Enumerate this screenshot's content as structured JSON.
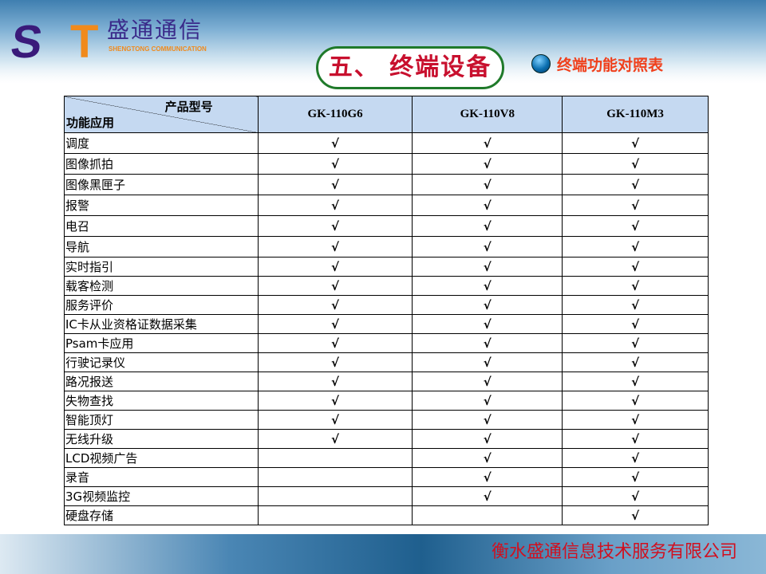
{
  "header": {
    "logo_cn": "盛通通信",
    "logo_en": "SHENGTONG COMMUNICATION",
    "logo_letters": "ST",
    "title": "五、 终端设备",
    "subtitle": "终端功能对照表"
  },
  "table": {
    "corner_top": "产品型号",
    "corner_bottom": "功能应用",
    "columns": [
      "GK-110G6",
      "GK-110V8",
      "GK-110M3"
    ],
    "check": "√",
    "rows": [
      {
        "feature": "调度",
        "marks": [
          true,
          true,
          true
        ]
      },
      {
        "feature": "图像抓拍",
        "marks": [
          true,
          true,
          true
        ]
      },
      {
        "feature": "图像黑匣子",
        "marks": [
          true,
          true,
          true
        ]
      },
      {
        "feature": "报警",
        "marks": [
          true,
          true,
          true
        ]
      },
      {
        "feature": "电召",
        "marks": [
          true,
          true,
          true
        ]
      },
      {
        "feature": "导航",
        "marks": [
          true,
          true,
          true
        ]
      },
      {
        "feature": "实时指引",
        "marks": [
          true,
          true,
          true
        ]
      },
      {
        "feature": "载客检测",
        "marks": [
          true,
          true,
          true
        ]
      },
      {
        "feature": "服务评价",
        "marks": [
          true,
          true,
          true
        ]
      },
      {
        "feature": "IC卡从业资格证数据采集",
        "marks": [
          true,
          true,
          true
        ]
      },
      {
        "feature": "Psam卡应用",
        "marks": [
          true,
          true,
          true
        ]
      },
      {
        "feature": "行驶记录仪",
        "marks": [
          true,
          true,
          true
        ]
      },
      {
        "feature": "路况报送",
        "marks": [
          true,
          true,
          true
        ]
      },
      {
        "feature": "失物查找",
        "marks": [
          true,
          true,
          true
        ]
      },
      {
        "feature": "智能顶灯",
        "marks": [
          true,
          true,
          true
        ]
      },
      {
        "feature": "无线升级",
        "marks": [
          true,
          true,
          true
        ]
      },
      {
        "feature": "LCD视频广告",
        "marks": [
          false,
          true,
          true
        ]
      },
      {
        "feature": "录音",
        "marks": [
          false,
          true,
          true
        ]
      },
      {
        "feature": "3G视频监控",
        "marks": [
          false,
          true,
          true
        ]
      },
      {
        "feature": "硬盘存储",
        "marks": [
          false,
          false,
          true
        ]
      }
    ]
  },
  "footer": {
    "company": "衡水盛通信息技术服务有限公司"
  }
}
